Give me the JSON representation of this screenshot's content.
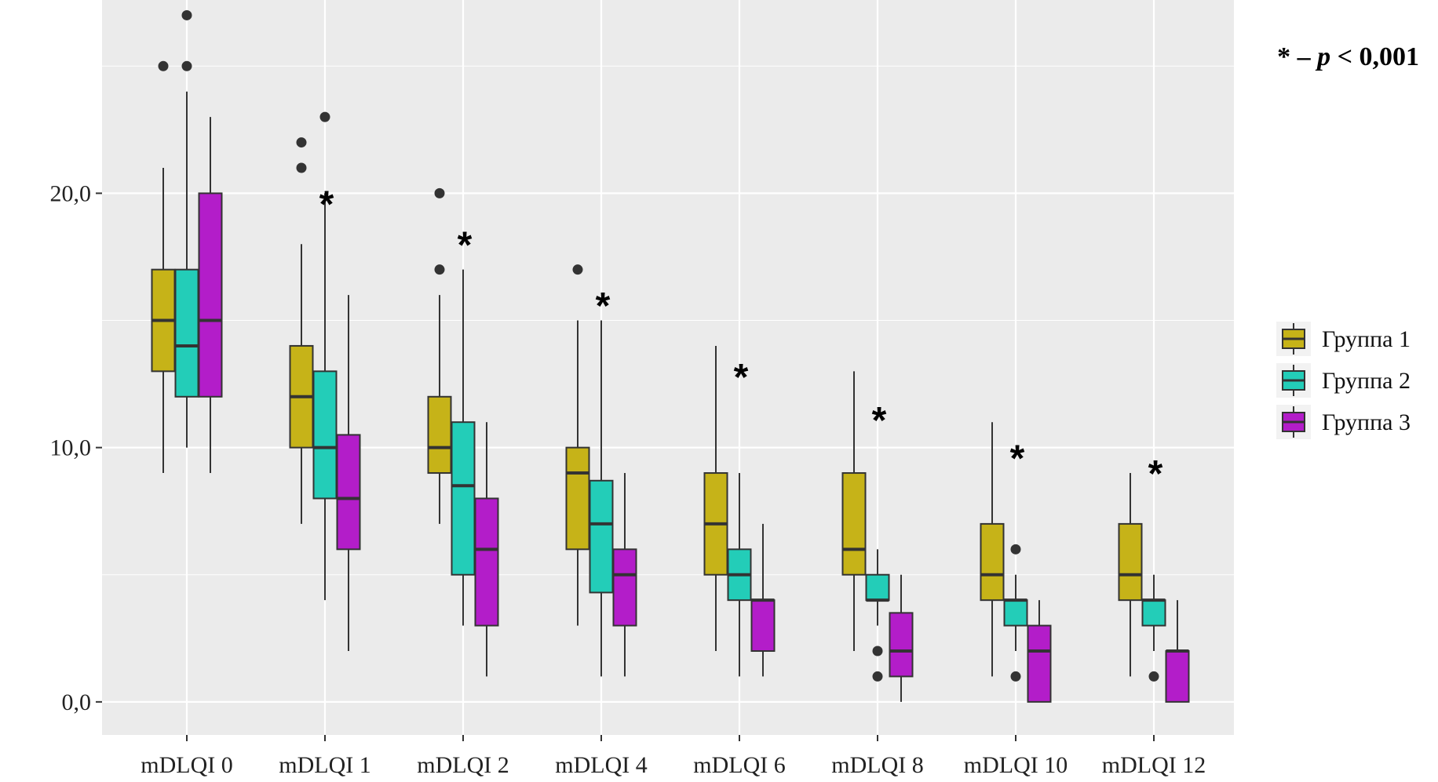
{
  "chart_data": {
    "type": "boxplot",
    "title": "",
    "xlabel": "",
    "ylabel": "",
    "ylim": [
      -1.3,
      27.6
    ],
    "yticks": [
      0,
      10,
      20
    ],
    "ytick_labels": [
      "0,0",
      "10,0",
      "20,0"
    ],
    "categories": [
      "mDLQI 0",
      "mDLQI 1",
      "mDLQI 2",
      "mDLQI 4",
      "mDLQI 6",
      "mDLQI 8",
      "mDLQI 10",
      "mDLQI 12"
    ],
    "series": [
      {
        "name": "Группа 1",
        "color": "#C6B318",
        "boxes": [
          {
            "min": 9,
            "q1": 13,
            "median": 15,
            "q3": 17,
            "max": 21,
            "outliers": [
              25
            ]
          },
          {
            "min": 7,
            "q1": 10,
            "median": 12,
            "q3": 14,
            "max": 18,
            "outliers": [
              21,
              22
            ]
          },
          {
            "min": 7,
            "q1": 9,
            "median": 10,
            "q3": 12,
            "max": 16,
            "outliers": [
              17,
              20
            ]
          },
          {
            "min": 3,
            "q1": 6,
            "median": 9,
            "q3": 10,
            "max": 15,
            "outliers": [
              17
            ]
          },
          {
            "min": 2,
            "q1": 5,
            "median": 7,
            "q3": 9,
            "max": 14,
            "outliers": []
          },
          {
            "min": 2,
            "q1": 5,
            "median": 6,
            "q3": 9,
            "max": 13,
            "outliers": []
          },
          {
            "min": 1,
            "q1": 4,
            "median": 5,
            "q3": 7,
            "max": 11,
            "outliers": []
          },
          {
            "min": 1,
            "q1": 4,
            "median": 5,
            "q3": 7,
            "max": 9,
            "outliers": []
          }
        ]
      },
      {
        "name": "Группа 2",
        "color": "#23CDB8",
        "boxes": [
          {
            "min": 10,
            "q1": 12,
            "median": 14,
            "q3": 17,
            "max": 24,
            "outliers": [
              25,
              27
            ]
          },
          {
            "min": 4,
            "q1": 8,
            "median": 10,
            "q3": 13,
            "max": 20,
            "outliers": [
              23
            ]
          },
          {
            "min": 3,
            "q1": 5,
            "median": 8.5,
            "q3": 11,
            "max": 17,
            "outliers": []
          },
          {
            "min": 1,
            "q1": 4.3,
            "median": 7,
            "q3": 8.7,
            "max": 15,
            "outliers": []
          },
          {
            "min": 1,
            "q1": 4,
            "median": 5,
            "q3": 6,
            "max": 9,
            "outliers": []
          },
          {
            "min": 3,
            "q1": 4,
            "median": 4,
            "q3": 5,
            "max": 6,
            "outliers": [
              1,
              2
            ]
          },
          {
            "min": 2,
            "q1": 3,
            "median": 4,
            "q3": 4,
            "max": 5,
            "outliers": [
              1,
              6
            ]
          },
          {
            "min": 2,
            "q1": 3,
            "median": 4,
            "q3": 4,
            "max": 5,
            "outliers": [
              1
            ]
          }
        ]
      },
      {
        "name": "Группа 3",
        "color": "#B31DC9",
        "boxes": [
          {
            "min": 9,
            "q1": 12,
            "median": 15,
            "q3": 20,
            "max": 23,
            "outliers": []
          },
          {
            "min": 2,
            "q1": 6,
            "median": 8,
            "q3": 10.5,
            "max": 16,
            "outliers": []
          },
          {
            "min": 1,
            "q1": 3,
            "median": 6,
            "q3": 8,
            "max": 11,
            "outliers": []
          },
          {
            "min": 1,
            "q1": 3,
            "median": 5,
            "q3": 6,
            "max": 9,
            "outliers": []
          },
          {
            "min": 1,
            "q1": 2,
            "median": 4,
            "q3": 4,
            "max": 7,
            "outliers": []
          },
          {
            "min": 0,
            "q1": 1,
            "median": 2,
            "q3": 3.5,
            "max": 5,
            "outliers": []
          },
          {
            "min": 0,
            "q1": 0,
            "median": 2,
            "q3": 3,
            "max": 4,
            "outliers": []
          },
          {
            "min": 0,
            "q1": 0,
            "median": 2,
            "q3": 2,
            "max": 4,
            "outliers": []
          }
        ]
      }
    ],
    "significance": [
      {
        "category": "mDLQI 1",
        "label": "*",
        "y": 20
      },
      {
        "category": "mDLQI 2",
        "label": "*",
        "y": 18.4
      },
      {
        "category": "mDLQI 4",
        "label": "*",
        "y": 16
      },
      {
        "category": "mDLQI 6",
        "label": "*",
        "y": 13.2
      },
      {
        "category": "mDLQI 8",
        "label": "*",
        "y": 11.5
      },
      {
        "category": "mDLQI 10",
        "label": "*",
        "y": 10
      },
      {
        "category": "mDLQI 12",
        "label": "*",
        "y": 9.4
      }
    ],
    "legend": {
      "position": "right",
      "items": [
        "Группа 1",
        "Группа 2",
        "Группа 3"
      ]
    }
  },
  "annotation": {
    "star": "*",
    "dash": "–",
    "p": "p",
    "rest": "< 0,001"
  },
  "colors": {
    "panel_bg": "#EBEBEB",
    "grid": "#FFFFFF",
    "outline": "#333333"
  }
}
